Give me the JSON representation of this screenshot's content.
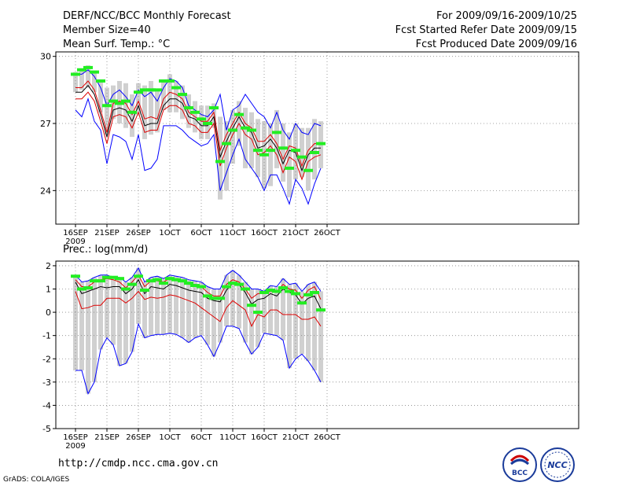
{
  "header": {
    "title": "DERF/NCC/BCC Monthly Forecast",
    "member": "Member Size=40",
    "variable": "Mean Surf. Temp.: °C",
    "period": "For 2009/09/16-2009/10/25",
    "started": "Fcst Started Refer Date 2009/09/15",
    "produced": "Fcst Produced Date 2009/09/16"
  },
  "footer": {
    "url": "http://cmdp.ncc.cma.gov.cn",
    "grads": "GrADS: COLA/IGES",
    "logo_bcc": "BCC",
    "logo_ncc": "NCC"
  },
  "colors": {
    "blue": "#0000ff",
    "red": "#dd0000",
    "black": "#000000",
    "green": "#22ee22",
    "bar": "#d0d0d0"
  },
  "chart_data": [
    {
      "type": "line",
      "title": "Mean Surf. Temp.: °C",
      "year_label": "2009",
      "x_ticks": [
        "16SEP",
        "21SEP",
        "26SEP",
        "1OCT",
        "6OCT",
        "11OCT",
        "16OCT",
        "21OCT",
        "26OCT"
      ],
      "x_tick_days": [
        0,
        5,
        10,
        15,
        20,
        25,
        30,
        35,
        40
      ],
      "y_ticks": [
        24,
        27,
        30
      ],
      "ylim": [
        22.5,
        30.2
      ],
      "days": [
        0,
        1,
        2,
        3,
        4,
        5,
        6,
        7,
        8,
        9,
        10,
        11,
        12,
        13,
        14,
        15,
        16,
        17,
        18,
        19,
        20,
        21,
        22,
        23,
        24,
        25,
        26,
        27,
        28,
        29,
        30,
        31,
        32,
        33,
        34,
        35,
        36,
        37,
        38,
        39
      ],
      "series": [
        {
          "name": "max",
          "color": "blue",
          "values": [
            29.2,
            29.2,
            29.4,
            29.1,
            28.6,
            27.8,
            28.3,
            28.5,
            28.2,
            27.8,
            28.5,
            28.2,
            28.4,
            28.0,
            28.6,
            29.0,
            28.9,
            28.6,
            27.8,
            27.6,
            27.4,
            27.3,
            27.6,
            28.3,
            26.7,
            27.6,
            27.8,
            28.3,
            27.9,
            27.5,
            27.3,
            26.8,
            27.5,
            26.7,
            26.3,
            27.0,
            26.6,
            26.5,
            27.0,
            26.9
          ]
        },
        {
          "name": "upper",
          "color": "red",
          "values": [
            28.6,
            28.6,
            28.9,
            28.5,
            27.6,
            26.6,
            27.9,
            28.0,
            27.9,
            27.4,
            28.0,
            27.2,
            27.3,
            27.2,
            28.1,
            28.4,
            28.3,
            28.1,
            27.5,
            27.3,
            27.1,
            27.1,
            27.5,
            25.8,
            26.5,
            27.0,
            27.5,
            27.0,
            26.8,
            26.2,
            26.2,
            26.5,
            26.1,
            25.4,
            26.0,
            25.9,
            25.1,
            25.8,
            26.1,
            26.1
          ]
        },
        {
          "name": "mean",
          "color": "black",
          "values": [
            28.4,
            28.4,
            28.7,
            28.3,
            27.4,
            26.4,
            27.6,
            27.7,
            27.6,
            27.1,
            27.8,
            26.9,
            27.0,
            27.0,
            27.8,
            28.1,
            28.1,
            27.9,
            27.3,
            27.2,
            26.9,
            26.9,
            27.3,
            25.5,
            26.2,
            26.8,
            27.3,
            26.8,
            26.6,
            25.9,
            26.0,
            26.3,
            25.9,
            25.2,
            25.8,
            25.7,
            24.9,
            25.6,
            25.9,
            25.9
          ]
        },
        {
          "name": "lower",
          "color": "red",
          "values": [
            28.1,
            28.1,
            28.4,
            28.0,
            27.1,
            26.1,
            27.3,
            27.4,
            27.3,
            26.8,
            27.5,
            26.6,
            26.7,
            26.7,
            27.6,
            27.8,
            27.8,
            27.6,
            27.0,
            26.9,
            26.6,
            26.6,
            27.0,
            25.1,
            25.9,
            26.5,
            27.0,
            26.5,
            26.3,
            25.6,
            25.7,
            26.0,
            25.6,
            24.8,
            25.5,
            25.3,
            24.5,
            25.3,
            25.5,
            25.6
          ]
        },
        {
          "name": "min",
          "color": "blue",
          "values": [
            27.6,
            27.3,
            28.1,
            27.1,
            26.7,
            25.2,
            26.5,
            26.4,
            26.2,
            25.4,
            26.5,
            24.9,
            25.0,
            25.4,
            26.9,
            26.9,
            26.9,
            26.7,
            26.4,
            26.2,
            26.0,
            26.1,
            26.5,
            24.0,
            24.8,
            25.6,
            26.3,
            25.4,
            25.0,
            24.6,
            24.0,
            24.7,
            24.7,
            24.1,
            23.4,
            24.5,
            24.1,
            23.4,
            24.3,
            25.0
          ]
        }
      ],
      "observed_green": [
        29.2,
        29.4,
        29.5,
        29.3,
        28.9,
        27.8,
        28.0,
        27.9,
        28.0,
        27.5,
        28.4,
        28.5,
        28.5,
        28.5,
        28.9,
        28.9,
        28.6,
        28.3,
        27.7,
        27.5,
        27.2,
        27.0,
        27.7,
        25.3,
        26.1,
        26.7,
        27.4,
        26.8,
        26.7,
        25.8,
        25.6,
        25.8,
        26.6,
        25.9,
        25.0,
        25.8,
        25.5,
        24.9,
        25.7,
        26.1
      ],
      "bar_top": [
        29.3,
        29.4,
        29.6,
        29.3,
        28.9,
        28.6,
        28.7,
        28.9,
        28.8,
        28.3,
        28.8,
        28.7,
        28.9,
        28.5,
        28.9,
        29.2,
        28.9,
        28.7,
        28.3,
        28.0,
        27.8,
        27.8,
        27.9,
        27.3,
        27.1,
        27.6,
        28.0,
        27.7,
        27.5,
        27.2,
        27.1,
        27.0,
        27.6,
        27.0,
        26.6,
        27.0,
        26.8,
        26.8,
        27.2,
        27.1
      ],
      "bar_bottom": [
        28.4,
        28.5,
        28.6,
        28.4,
        27.5,
        26.5,
        27.2,
        27.0,
        26.8,
        26.4,
        27.4,
        26.3,
        26.5,
        26.6,
        27.6,
        27.5,
        27.5,
        27.2,
        26.8,
        26.6,
        26.3,
        26.3,
        26.8,
        23.6,
        24.0,
        25.2,
        26.0,
        25.0,
        25.0,
        24.6,
        24.1,
        24.2,
        25.0,
        24.4,
        23.7,
        24.5,
        24.6,
        24.0,
        24.5,
        25.0
      ]
    },
    {
      "type": "line",
      "title": "Prec.: log(mm/d)",
      "year_label": "2009",
      "x_ticks": [
        "16SEP",
        "21SEP",
        "26SEP",
        "1OCT",
        "6OCT",
        "11OCT",
        "16OCT",
        "21OCT",
        "26OCT"
      ],
      "x_tick_days": [
        0,
        5,
        10,
        15,
        20,
        25,
        30,
        35,
        40
      ],
      "y_ticks": [
        -5,
        -4,
        -3,
        -2,
        -1,
        0,
        1,
        2
      ],
      "ylim": [
        -5,
        2.2
      ],
      "days": [
        0,
        1,
        2,
        3,
        4,
        5,
        6,
        7,
        8,
        9,
        10,
        11,
        12,
        13,
        14,
        15,
        16,
        17,
        18,
        19,
        20,
        21,
        22,
        23,
        24,
        25,
        26,
        27,
        28,
        29,
        30,
        31,
        32,
        33,
        34,
        35,
        36,
        37,
        38,
        39
      ],
      "series": [
        {
          "name": "max",
          "color": "blue",
          "values": [
            1.6,
            1.3,
            1.35,
            1.5,
            1.6,
            1.6,
            1.5,
            1.5,
            1.3,
            1.5,
            1.9,
            1.3,
            1.5,
            1.55,
            1.45,
            1.6,
            1.55,
            1.5,
            1.4,
            1.35,
            1.3,
            1.1,
            1.0,
            1.0,
            1.6,
            1.8,
            1.6,
            1.3,
            1.0,
            1.0,
            0.9,
            1.15,
            1.1,
            1.45,
            1.2,
            1.25,
            0.9,
            1.2,
            1.3,
            0.9
          ]
        },
        {
          "name": "upper",
          "color": "red",
          "values": [
            1.4,
            1.1,
            1.1,
            1.3,
            1.4,
            1.45,
            1.4,
            1.3,
            1.05,
            1.3,
            1.6,
            1.1,
            1.35,
            1.35,
            1.3,
            1.45,
            1.4,
            1.35,
            1.2,
            1.2,
            1.1,
            0.85,
            0.7,
            0.7,
            1.2,
            1.4,
            1.3,
            1.0,
            0.6,
            0.8,
            0.8,
            0.9,
            0.85,
            1.2,
            1.0,
            0.95,
            0.6,
            0.95,
            1.1,
            0.55
          ]
        },
        {
          "name": "mean",
          "color": "black",
          "values": [
            1.3,
            0.8,
            0.9,
            1.0,
            1.1,
            1.05,
            1.1,
            1.1,
            0.8,
            1.0,
            1.4,
            0.8,
            1.1,
            1.05,
            1.0,
            1.2,
            1.15,
            1.05,
            0.95,
            0.9,
            0.85,
            0.6,
            0.5,
            0.45,
            0.95,
            1.25,
            1.2,
            0.85,
            0.35,
            0.55,
            0.6,
            0.8,
            0.7,
            1.0,
            0.85,
            0.75,
            0.35,
            0.6,
            0.7,
            0.15
          ]
        },
        {
          "name": "lower",
          "color": "red",
          "values": [
            0.9,
            0.15,
            0.2,
            0.3,
            0.3,
            0.6,
            0.6,
            0.6,
            0.4,
            0.6,
            0.9,
            0.55,
            0.65,
            0.6,
            0.65,
            0.75,
            0.7,
            0.6,
            0.5,
            0.4,
            0.2,
            0.0,
            -0.2,
            -0.4,
            0.2,
            0.5,
            0.3,
            0.1,
            -0.6,
            -0.1,
            -0.2,
            0.1,
            0.1,
            -0.1,
            -0.1,
            -0.1,
            -0.3,
            -0.3,
            -0.2,
            -0.6
          ]
        },
        {
          "name": "min",
          "color": "blue",
          "values": [
            -2.5,
            -2.5,
            -3.5,
            -3.0,
            -1.6,
            -1.1,
            -1.4,
            -2.3,
            -2.2,
            -1.7,
            -0.5,
            -1.1,
            -1.0,
            -0.95,
            -0.95,
            -0.9,
            -0.95,
            -1.1,
            -1.3,
            -1.1,
            -1.0,
            -1.4,
            -1.9,
            -1.3,
            -0.6,
            -0.6,
            -0.7,
            -1.3,
            -1.8,
            -1.5,
            -0.9,
            -0.95,
            -1.0,
            -1.2,
            -2.4,
            -2.0,
            -1.8,
            -2.1,
            -2.5,
            -3.0
          ]
        }
      ],
      "observed_green": [
        1.55,
        1.0,
        1.05,
        1.35,
        1.35,
        1.5,
        1.5,
        1.45,
        1.0,
        1.2,
        1.55,
        0.95,
        1.35,
        1.4,
        1.25,
        1.45,
        1.4,
        1.35,
        1.25,
        1.15,
        1.1,
        0.7,
        0.6,
        0.6,
        1.1,
        1.25,
        1.2,
        1.0,
        0.3,
        0.0,
        0.85,
        0.95,
        0.9,
        1.05,
        0.9,
        0.8,
        0.4,
        0.75,
        0.85,
        0.1
      ]
    }
  ]
}
